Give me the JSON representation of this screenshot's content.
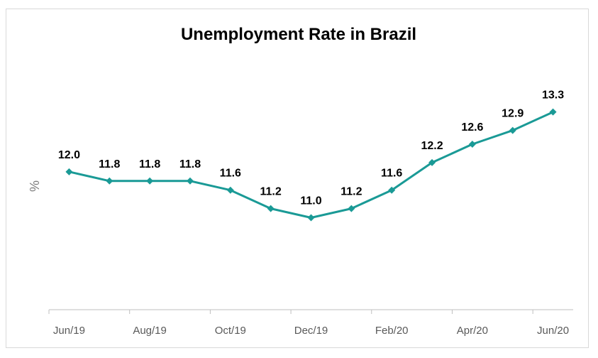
{
  "chart_data": {
    "type": "line",
    "title": "Unemployment Rate in Brazil",
    "xlabel": "",
    "ylabel": "%",
    "ylim": [
      9,
      14.5
    ],
    "grid": false,
    "legend": "none",
    "x": [
      "Jun/19",
      "Jul/19",
      "Aug/19",
      "Sep/19",
      "Oct/19",
      "Nov/19",
      "Dec/19",
      "Jan/20",
      "Feb/20",
      "Mar/20",
      "Apr/20",
      "May/20",
      "Jun/20"
    ],
    "x_tick_labels": [
      "Jun/19",
      "Aug/19",
      "Oct/19",
      "Dec/19",
      "Feb/20",
      "Apr/20",
      "Jun/20"
    ],
    "series": [
      {
        "values": [
          12.0,
          11.8,
          11.8,
          11.8,
          11.6,
          11.2,
          11.0,
          11.2,
          11.6,
          12.2,
          12.6,
          12.9,
          13.3
        ],
        "labels": [
          "12.0",
          "11.8",
          "11.8",
          "11.8",
          "11.6",
          "11.2",
          "11.0",
          "11.2",
          "11.6",
          "12.2",
          "12.6",
          "12.9",
          "13.3"
        ],
        "color": "#1a9a96",
        "marker": "diamond"
      }
    ],
    "axis_color": "#bfbfbf"
  }
}
